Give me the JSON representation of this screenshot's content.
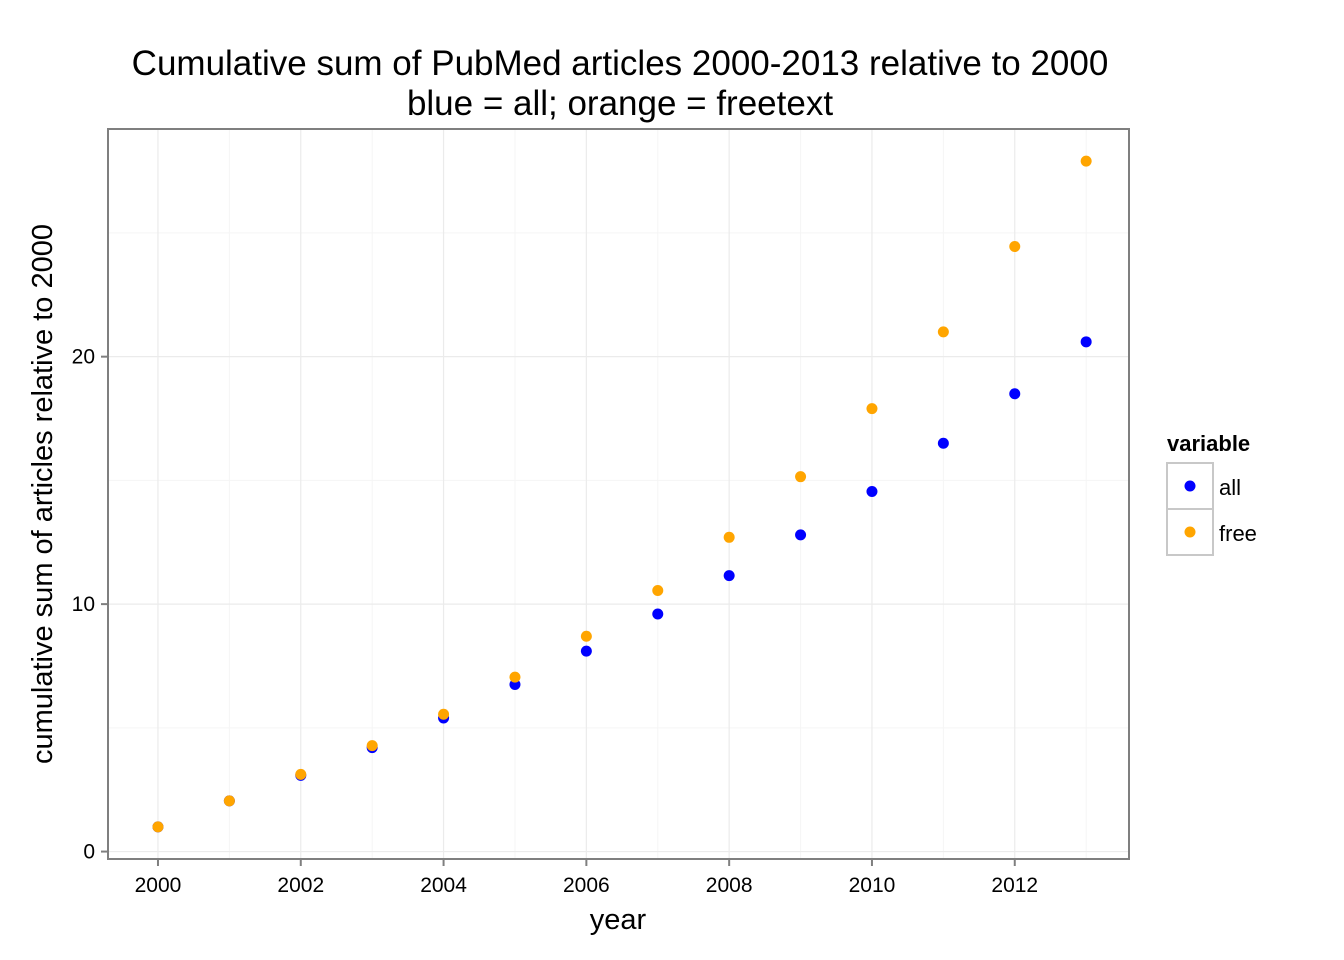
{
  "chart_data": {
    "type": "scatter",
    "title": "Cumulative sum of PubMed articles 2000-2013 relative to 2000",
    "subtitle": "blue = all; orange = freetext",
    "xlabel": "year",
    "ylabel": "cumulative sum of articles relative to 2000",
    "x": [
      2000,
      2001,
      2002,
      2003,
      2004,
      2005,
      2006,
      2007,
      2008,
      2009,
      2010,
      2011,
      2012,
      2013
    ],
    "xlim": [
      1999.3,
      2013.6
    ],
    "ylim": [
      -0.3,
      29.2
    ],
    "x_ticks": [
      2000,
      2002,
      2004,
      2006,
      2008,
      2010,
      2012
    ],
    "x_tick_labels": [
      "2000",
      "2002",
      "2004",
      "2006",
      "2008",
      "2010",
      "2012"
    ],
    "y_ticks": [
      0,
      10,
      20
    ],
    "y_tick_labels": [
      "0",
      "10",
      "20"
    ],
    "grid": true,
    "legend": {
      "title": "variable",
      "position": "right"
    },
    "series": [
      {
        "name": "all",
        "color": "#0000ff",
        "values": [
          1.0,
          2.05,
          3.08,
          4.2,
          5.4,
          6.75,
          8.1,
          9.6,
          11.15,
          12.8,
          14.55,
          16.5,
          18.5,
          20.6
        ]
      },
      {
        "name": "free",
        "color": "#ffa500",
        "values": [
          1.0,
          2.05,
          3.12,
          4.28,
          5.55,
          7.05,
          8.7,
          10.55,
          12.7,
          15.15,
          17.9,
          21.0,
          24.45,
          27.9
        ]
      }
    ]
  }
}
